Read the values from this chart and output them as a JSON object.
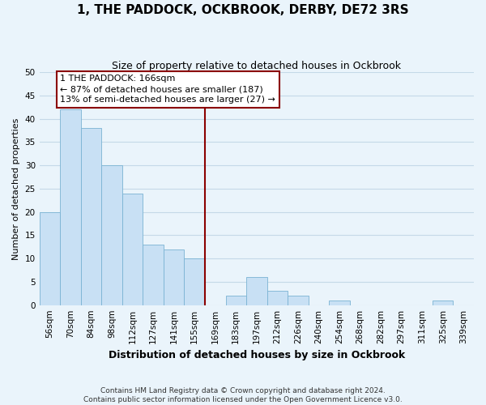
{
  "title": "1, THE PADDOCK, OCKBROOK, DERBY, DE72 3RS",
  "subtitle": "Size of property relative to detached houses in Ockbrook",
  "xlabel": "Distribution of detached houses by size in Ockbrook",
  "ylabel": "Number of detached properties",
  "bin_labels": [
    "56sqm",
    "70sqm",
    "84sqm",
    "98sqm",
    "112sqm",
    "127sqm",
    "141sqm",
    "155sqm",
    "169sqm",
    "183sqm",
    "197sqm",
    "212sqm",
    "226sqm",
    "240sqm",
    "254sqm",
    "268sqm",
    "282sqm",
    "297sqm",
    "311sqm",
    "325sqm",
    "339sqm"
  ],
  "bar_values": [
    20,
    42,
    38,
    30,
    24,
    13,
    12,
    10,
    0,
    2,
    6,
    3,
    2,
    0,
    1,
    0,
    0,
    0,
    0,
    1,
    0
  ],
  "bar_color": "#c8e0f4",
  "bar_edge_color": "#7ab3d3",
  "vline_x_index": 8,
  "vline_color": "#8b0000",
  "annotation_text": "1 THE PADDOCK: 166sqm\n← 87% of detached houses are smaller (187)\n13% of semi-detached houses are larger (27) →",
  "annotation_box_color": "#ffffff",
  "annotation_border_color": "#8b0000",
  "ylim": [
    0,
    50
  ],
  "yticks": [
    0,
    5,
    10,
    15,
    20,
    25,
    30,
    35,
    40,
    45,
    50
  ],
  "grid_color": "#c5d9e8",
  "footer_line1": "Contains HM Land Registry data © Crown copyright and database right 2024.",
  "footer_line2": "Contains public sector information licensed under the Open Government Licence v3.0.",
  "background_color": "#eaf4fb",
  "title_fontsize": 11,
  "subtitle_fontsize": 9,
  "ylabel_fontsize": 8,
  "xlabel_fontsize": 9,
  "tick_labelsize": 7.5,
  "annotation_fontsize": 8,
  "footer_fontsize": 6.5
}
